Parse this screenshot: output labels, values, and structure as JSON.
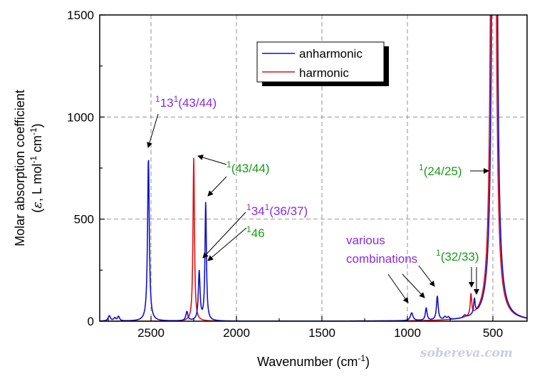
{
  "chart_data": {
    "type": "line",
    "xlabel_main": "Wavenumber (cm",
    "xlabel_sup": "-1",
    "xlabel_end": ")",
    "ylabel_line1": "Molar absorption coefficient",
    "ylabel_line2": {
      "open": "(",
      "eps": "ε",
      "mid": ", L mol",
      "sup1": "-1",
      "mid2": " cm",
      "sup2": "-1",
      "close": ")"
    },
    "xlim": [
      2800,
      300
    ],
    "ylim": [
      0,
      1500
    ],
    "x_ticks": [
      2500,
      2000,
      1500,
      1000,
      500
    ],
    "y_ticks": [
      0,
      500,
      1000,
      1500
    ],
    "grid": "dashed",
    "legend_position": "top-center",
    "series": [
      {
        "name": "anharmonic",
        "color": "#1010d0",
        "peaks": [
          {
            "x": 2744,
            "y": 26,
            "w": 8
          },
          {
            "x": 2712,
            "y": 14,
            "w": 7
          },
          {
            "x": 2690,
            "y": 22,
            "w": 7
          },
          {
            "x": 2515,
            "y": 800,
            "w": 6
          },
          {
            "x": 2290,
            "y": 45,
            "w": 7
          },
          {
            "x": 2218,
            "y": 240,
            "w": 6
          },
          {
            "x": 2180,
            "y": 580,
            "w": 5
          },
          {
            "x": 975,
            "y": 38,
            "w": 9
          },
          {
            "x": 890,
            "y": 60,
            "w": 6
          },
          {
            "x": 825,
            "y": 118,
            "w": 6
          },
          {
            "x": 780,
            "y": 14,
            "w": 8
          },
          {
            "x": 760,
            "y": 12,
            "w": 7
          },
          {
            "x": 665,
            "y": 12,
            "w": 8
          },
          {
            "x": 608,
            "y": 72,
            "w": 5
          },
          {
            "x": 490,
            "y": 9000,
            "w": 8
          }
        ]
      },
      {
        "name": "harmonic",
        "color": "#e01010",
        "peaks": [
          {
            "x": 2250,
            "y": 800,
            "w": 5
          },
          {
            "x": 628,
            "y": 105,
            "w": 5
          },
          {
            "x": 497,
            "y": 9000,
            "w": 8
          }
        ]
      }
    ],
    "annotations": [
      {
        "id": "a1",
        "color": "#8a2be2",
        "pre": "1",
        "main": "13",
        "mid": "1",
        "tail": "(43/44)"
      },
      {
        "id": "a2",
        "color": "#1a9a1a",
        "pre": "1",
        "main": "(43/44)",
        "mid": "",
        "tail": ""
      },
      {
        "id": "a3",
        "color": "#8a2be2",
        "pre": "1",
        "main": "34",
        "mid": "1",
        "tail": "(36/37)"
      },
      {
        "id": "a4",
        "color": "#1a9a1a",
        "pre": "1",
        "main": "46",
        "mid": "",
        "tail": ""
      },
      {
        "id": "a5",
        "color": "#1a9a1a",
        "pre": "1",
        "main": "(24/25)",
        "mid": "",
        "tail": ""
      },
      {
        "id": "a6",
        "color": "#1a9a1a",
        "pre": "1",
        "main": "(32/33)",
        "mid": "",
        "tail": ""
      },
      {
        "id": "a7",
        "color": "#8a2be2",
        "line1": "various",
        "line2": "combinations"
      }
    ]
  },
  "watermark": "sobereva.com"
}
